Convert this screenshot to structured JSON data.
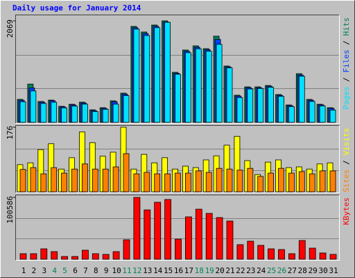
{
  "title": "Daily usage for January 2014",
  "legend_separator": " / ",
  "chart_data": [
    {
      "type": "bar",
      "ylim": [
        0,
        2069
      ],
      "yticks": [
        2069
      ],
      "series": [
        {
          "name": "Hits",
          "color": "#00805c",
          "values": [
            468,
            779,
            425,
            453,
            326,
            368,
            411,
            255,
            298,
            439,
            595,
            1956,
            1842,
            1984,
            2069,
            1020,
            1474,
            1559,
            1502,
            1757,
            1148,
            553,
            723,
            723,
            751,
            567,
            354,
            992,
            468,
            368,
            298
          ]
        },
        {
          "name": "Files",
          "color": "#0040ff",
          "values": [
            450,
            700,
            410,
            440,
            315,
            355,
            395,
            240,
            285,
            420,
            575,
            1930,
            1810,
            1960,
            2045,
            1000,
            1450,
            1530,
            1480,
            1690,
            1130,
            535,
            705,
            705,
            735,
            550,
            340,
            965,
            450,
            355,
            285
          ]
        },
        {
          "name": "Pages",
          "color": "#00e0ff",
          "values": [
            420,
            640,
            385,
            410,
            295,
            330,
            370,
            220,
            265,
            370,
            545,
            1900,
            1770,
            1930,
            2040,
            980,
            1420,
            1500,
            1450,
            1590,
            1110,
            505,
            680,
            690,
            715,
            530,
            320,
            940,
            425,
            335,
            250
          ]
        }
      ]
    },
    {
      "type": "bar",
      "ylim": [
        0,
        176
      ],
      "yticks": [
        176
      ],
      "series": [
        {
          "name": "Visits",
          "color": "#ffff00",
          "values": [
            74,
            79,
            115,
            131,
            62,
            93,
            163,
            134,
            97,
            108,
            176,
            62,
            102,
            79,
            93,
            62,
            70,
            66,
            87,
            98,
            127,
            151,
            85,
            47,
            81,
            87,
            66,
            68,
            62,
            76,
            79
          ]
        },
        {
          "name": "Sites",
          "color": "#ff8000",
          "values": [
            61,
            66,
            49,
            66,
            51,
            62,
            76,
            62,
            62,
            68,
            104,
            49,
            53,
            49,
            49,
            51,
            51,
            57,
            53,
            64,
            62,
            59,
            64,
            42,
            51,
            64,
            51,
            55,
            49,
            57,
            57
          ]
        }
      ]
    },
    {
      "type": "bar",
      "ylim": [
        0,
        100586
      ],
      "yticks": [
        100586
      ],
      "categories": [
        "1",
        "2",
        "3",
        "4",
        "5",
        "6",
        "7",
        "8",
        "9",
        "10",
        "11",
        "12",
        "13",
        "14",
        "15",
        "16",
        "17",
        "18",
        "19",
        "20",
        "21",
        "22",
        "23",
        "24",
        "25",
        "26",
        "27",
        "28",
        "29",
        "30",
        "31"
      ],
      "weekend_indices": [
        3,
        4,
        10,
        11,
        17,
        18,
        24,
        25
      ],
      "weekend_color": "#00805c",
      "label_color": "#000000",
      "series": [
        {
          "name": "KBytes",
          "color": "#ff0000",
          "values": [
            9041,
            9041,
            16953,
            12432,
            4521,
            4521,
            14692,
            9041,
            7911,
            12432,
            31645,
            100586,
            80243,
            92673,
            97193,
            32775,
            68941,
            81373,
            74592,
            67811,
            62160,
            23734,
            29385,
            22604,
            16953,
            15822,
            9041,
            30515,
            18083,
            10172,
            7911
          ]
        }
      ]
    }
  ]
}
